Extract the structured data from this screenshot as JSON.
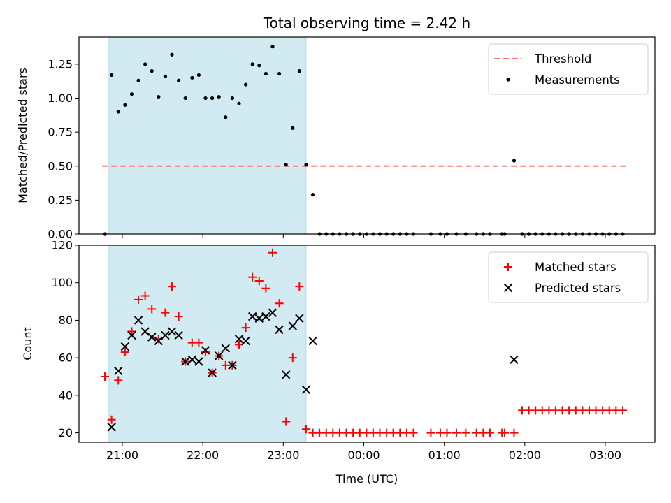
{
  "title": "Total observing time = 2.42 h",
  "xlabel": "Time (UTC)",
  "colors": {
    "shade": "#add8e6",
    "threshold": "#ff7070",
    "measurement": "#000000",
    "matched": "#ff0000",
    "predicted": "#000000"
  },
  "shaded_interval": [
    "20:50",
    "23:17"
  ],
  "chart_data": [
    {
      "type": "scatter",
      "ylabel": "Matched/Predicted stars",
      "ylim": [
        0,
        1.45
      ],
      "yticks": [
        0.0,
        0.25,
        0.5,
        0.75,
        1.0,
        1.25
      ],
      "ytick_labels": [
        "0.00",
        "0.25",
        "0.50",
        "0.75",
        "1.00",
        "1.25"
      ],
      "legend": "top-right",
      "threshold": {
        "name": "Threshold",
        "y": 0.5,
        "x_range": [
          "20:45",
          "03:17"
        ]
      },
      "series": [
        {
          "name": "Measurements",
          "x": [
            "20:47",
            "20:52",
            "20:57",
            "21:02",
            "21:07",
            "21:12",
            "21:17",
            "21:22",
            "21:27",
            "21:32",
            "21:37",
            "21:42",
            "21:47",
            "21:52",
            "21:57",
            "22:02",
            "22:07",
            "22:12",
            "22:17",
            "22:22",
            "22:27",
            "22:32",
            "22:37",
            "22:42",
            "22:47",
            "22:52",
            "22:57",
            "23:02",
            "23:07",
            "23:12",
            "23:17",
            "23:22",
            "23:27",
            "23:32",
            "23:37",
            "23:42",
            "23:47",
            "23:52",
            "23:57",
            "00:02",
            "00:07",
            "00:12",
            "00:17",
            "00:22",
            "00:27",
            "00:32",
            "00:37",
            "00:50",
            "00:57",
            "01:02",
            "01:09",
            "01:16",
            "01:24",
            "01:29",
            "01:34",
            "01:43",
            "01:45",
            "01:52",
            "01:58",
            "02:03",
            "02:08",
            "02:13",
            "02:18",
            "02:23",
            "02:28",
            "02:33",
            "02:38",
            "02:43",
            "02:48",
            "02:53",
            "02:58",
            "03:03",
            "03:08",
            "03:13"
          ],
          "y": [
            0,
            1.17,
            0.9,
            0.95,
            1.03,
            1.13,
            1.25,
            1.2,
            1.01,
            1.16,
            1.32,
            1.13,
            1.0,
            1.15,
            1.17,
            1.0,
            1.0,
            1.01,
            0.86,
            1.0,
            0.96,
            1.1,
            1.25,
            1.24,
            1.18,
            1.38,
            1.18,
            0.51,
            0.78,
            1.2,
            0.51,
            0.29,
            0,
            0,
            0,
            0,
            0,
            0,
            0,
            0,
            0,
            0,
            0,
            0,
            0,
            0,
            0,
            0,
            0,
            0,
            0,
            0,
            0,
            0,
            0,
            0,
            0,
            0.54,
            0,
            0,
            0,
            0,
            0,
            0,
            0,
            0,
            0,
            0,
            0,
            0,
            0,
            0,
            0,
            0
          ]
        }
      ]
    },
    {
      "type": "scatter",
      "ylabel": "Count",
      "ylim": [
        15,
        120
      ],
      "yticks": [
        20,
        40,
        60,
        80,
        100,
        120
      ],
      "ytick_labels": [
        "20",
        "40",
        "60",
        "80",
        "100",
        "120"
      ],
      "xticks": [
        "21:00",
        "22:00",
        "23:00",
        "00:00",
        "01:00",
        "02:00",
        "03:00"
      ],
      "legend": "top-right",
      "series": [
        {
          "name": "Matched stars",
          "marker": "plus",
          "x": [
            "20:47",
            "20:52",
            "20:57",
            "21:02",
            "21:07",
            "21:12",
            "21:17",
            "21:22",
            "21:27",
            "21:32",
            "21:37",
            "21:42",
            "21:47",
            "21:52",
            "21:57",
            "22:02",
            "22:07",
            "22:12",
            "22:17",
            "22:22",
            "22:27",
            "22:32",
            "22:37",
            "22:42",
            "22:47",
            "22:52",
            "22:57",
            "23:02",
            "23:07",
            "23:12",
            "23:17",
            "23:22",
            "23:27",
            "23:32",
            "23:37",
            "23:42",
            "23:47",
            "23:52",
            "23:57",
            "00:02",
            "00:07",
            "00:12",
            "00:17",
            "00:22",
            "00:27",
            "00:32",
            "00:37",
            "00:50",
            "00:57",
            "01:02",
            "01:09",
            "01:16",
            "01:24",
            "01:29",
            "01:34",
            "01:43",
            "01:45",
            "01:52",
            "01:58",
            "02:03",
            "02:08",
            "02:13",
            "02:18",
            "02:23",
            "02:28",
            "02:33",
            "02:38",
            "02:43",
            "02:48",
            "02:53",
            "02:58",
            "03:03",
            "03:08",
            "03:13"
          ],
          "y": [
            50,
            27,
            48,
            63,
            74,
            91,
            93,
            86,
            70,
            84,
            98,
            82,
            58,
            68,
            68,
            63,
            52,
            61,
            56,
            56,
            67,
            76,
            103,
            101,
            97,
            116,
            89,
            26,
            60,
            98,
            22,
            20,
            20,
            20,
            20,
            20,
            20,
            20,
            20,
            20,
            20,
            20,
            20,
            20,
            20,
            20,
            20,
            20,
            20,
            20,
            20,
            20,
            20,
            20,
            20,
            20,
            20,
            20,
            32,
            32,
            32,
            32,
            32,
            32,
            32,
            32,
            32,
            32,
            32,
            32,
            32,
            32,
            32,
            32
          ]
        },
        {
          "name": "Predicted stars",
          "marker": "x",
          "x": [
            "20:52",
            "20:57",
            "21:02",
            "21:07",
            "21:12",
            "21:17",
            "21:22",
            "21:27",
            "21:32",
            "21:37",
            "21:42",
            "21:47",
            "21:52",
            "21:57",
            "22:02",
            "22:07",
            "22:12",
            "22:17",
            "22:22",
            "22:27",
            "22:32",
            "22:37",
            "22:42",
            "22:47",
            "22:52",
            "22:57",
            "23:02",
            "23:07",
            "23:12",
            "23:17",
            "23:22",
            "01:52"
          ],
          "y": [
            23,
            53,
            66,
            72,
            80,
            74,
            71,
            69,
            72,
            74,
            72,
            58,
            59,
            58,
            64,
            52,
            61,
            65,
            56,
            70,
            69,
            82,
            81,
            82,
            84,
            75,
            51,
            77,
            81,
            43,
            69,
            59
          ]
        }
      ]
    }
  ]
}
